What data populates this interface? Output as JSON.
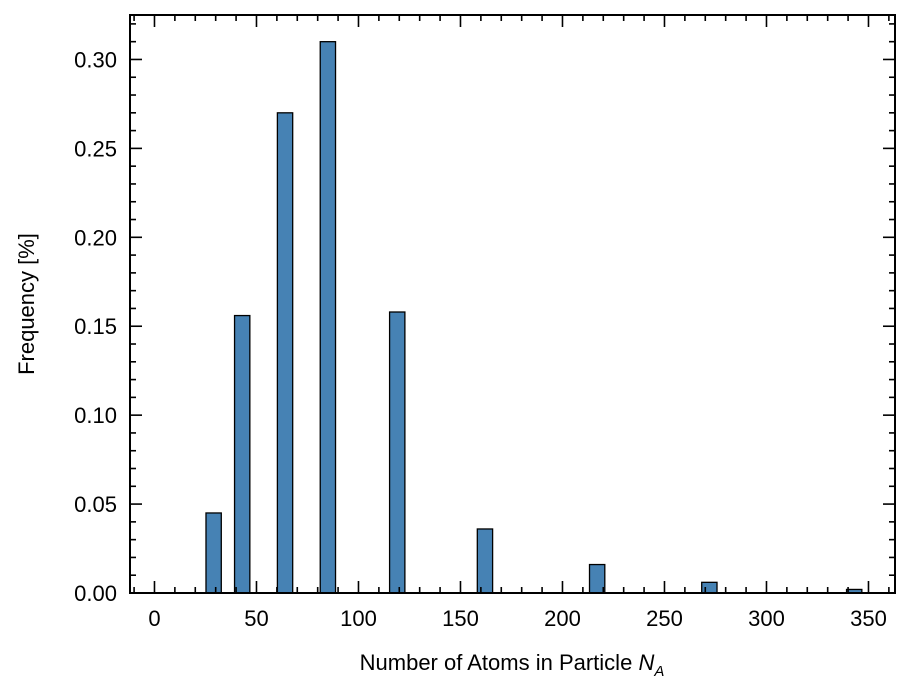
{
  "chart_data": {
    "type": "bar",
    "xlabel": "Number of Atoms in Particle",
    "xlabel_symbol": "N",
    "xlabel_subscript": "A",
    "ylabel": "Frequency [%]",
    "xlim": [
      -12,
      363
    ],
    "ylim": [
      0,
      0.325
    ],
    "xticks": [
      0,
      50,
      100,
      150,
      200,
      250,
      300,
      350
    ],
    "xtick_labels": [
      "0",
      "50",
      "100",
      "150",
      "200",
      "250",
      "300",
      "350"
    ],
    "yticks": [
      0.0,
      0.05,
      0.1,
      0.15,
      0.2,
      0.25,
      0.3
    ],
    "ytick_labels": [
      "0.00",
      "0.05",
      "0.10",
      "0.15",
      "0.20",
      "0.25",
      "0.30"
    ],
    "bar_width": 7.5,
    "bar_color": "#4682b4",
    "bar_edge_color": "#000000",
    "grid": false,
    "ticks_direction": "in",
    "ticks_on_all_sides": true,
    "x": [
      29,
      43,
      64,
      85,
      119,
      162,
      217,
      272,
      343
    ],
    "values": [
      0.045,
      0.156,
      0.27,
      0.31,
      0.158,
      0.036,
      0.016,
      0.006,
      0.002
    ]
  }
}
